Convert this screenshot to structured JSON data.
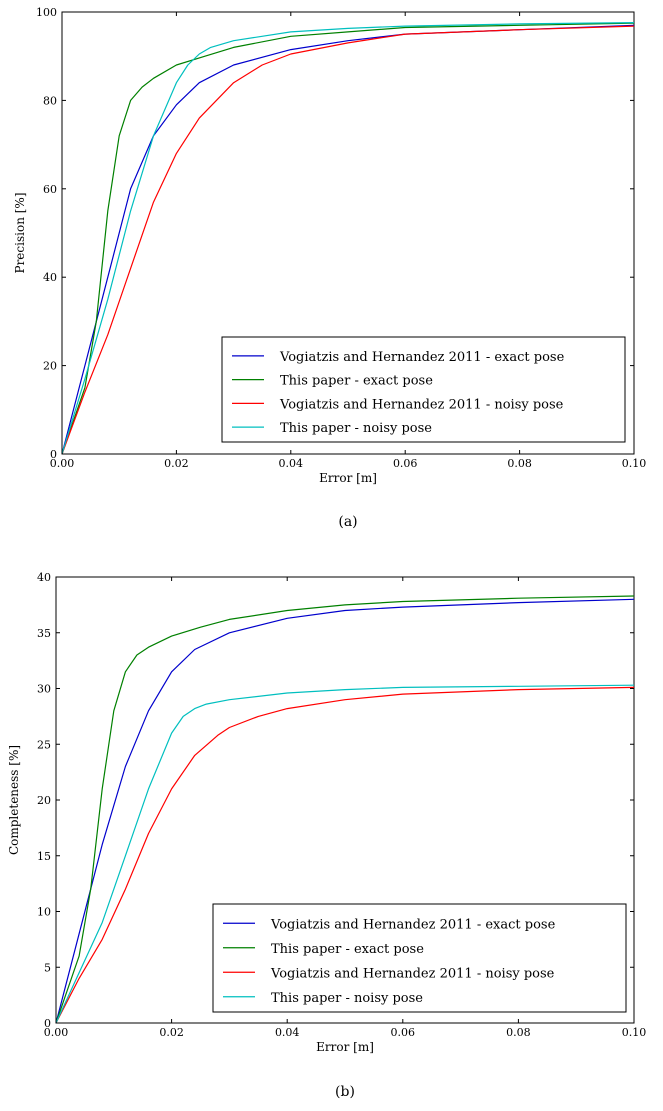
{
  "chart_data": [
    {
      "type": "line",
      "caption": "(a)",
      "xlabel": "Error [m]",
      "ylabel": "Precision [%]",
      "xlim": [
        0,
        0.1
      ],
      "ylim": [
        0,
        100
      ],
      "xticks": [
        "0.00",
        "0.02",
        "0.04",
        "0.06",
        "0.08",
        "0.10"
      ],
      "yticks": [
        "0",
        "20",
        "40",
        "60",
        "80",
        "100"
      ],
      "legend_position": "bottom-right",
      "grid": false,
      "series": [
        {
          "name": "Vogiatzis and Hernandez 2011 - exact pose",
          "color": "#0000cc",
          "x": [
            0,
            0.004,
            0.008,
            0.012,
            0.016,
            0.02,
            0.024,
            0.03,
            0.04,
            0.05,
            0.06,
            0.08,
            0.1
          ],
          "y": [
            0,
            20,
            40,
            60,
            72,
            79,
            84,
            88,
            91.5,
            93.5,
            95,
            96,
            97
          ]
        },
        {
          "name": "This paper - exact pose",
          "color": "#008000",
          "x": [
            0,
            0.004,
            0.006,
            0.008,
            0.01,
            0.012,
            0.014,
            0.016,
            0.02,
            0.025,
            0.03,
            0.04,
            0.05,
            0.06,
            0.08,
            0.1
          ],
          "y": [
            0,
            15,
            30,
            55,
            72,
            80,
            83,
            85,
            88,
            90,
            92,
            94.5,
            95.5,
            96.5,
            97,
            97.5
          ]
        },
        {
          "name": "Vogiatzis and Hernandez 2011 - noisy pose",
          "color": "#ff0000",
          "x": [
            0,
            0.004,
            0.008,
            0.012,
            0.016,
            0.02,
            0.024,
            0.03,
            0.035,
            0.04,
            0.05,
            0.06,
            0.08,
            0.1
          ],
          "y": [
            0,
            14,
            27,
            42,
            57,
            68,
            76,
            84,
            88,
            90.5,
            93,
            95,
            96,
            96.8
          ]
        },
        {
          "name": "This paper - noisy pose",
          "color": "#00bfbf",
          "x": [
            0,
            0.004,
            0.008,
            0.012,
            0.016,
            0.02,
            0.022,
            0.024,
            0.026,
            0.03,
            0.04,
            0.05,
            0.06,
            0.08,
            0.1
          ],
          "y": [
            0,
            17,
            35,
            55,
            72,
            84,
            88,
            90.5,
            92,
            93.5,
            95.5,
            96.3,
            96.8,
            97.3,
            97.6
          ]
        }
      ]
    },
    {
      "type": "line",
      "caption": "(b)",
      "xlabel": "Error [m]",
      "ylabel": "Completeness [%]",
      "xlim": [
        0,
        0.1
      ],
      "ylim": [
        0,
        40
      ],
      "xticks": [
        "0.00",
        "0.02",
        "0.04",
        "0.06",
        "0.08",
        "0.10"
      ],
      "yticks": [
        "0",
        "5",
        "10",
        "15",
        "20",
        "25",
        "30",
        "35",
        "40"
      ],
      "legend_position": "bottom-right",
      "grid": false,
      "series": [
        {
          "name": "Vogiatzis and Hernandez 2011 - exact pose",
          "color": "#0000cc",
          "x": [
            0,
            0.004,
            0.008,
            0.012,
            0.016,
            0.02,
            0.024,
            0.03,
            0.04,
            0.05,
            0.06,
            0.08,
            0.1
          ],
          "y": [
            0,
            8,
            16,
            23,
            28,
            31.5,
            33.5,
            35,
            36.3,
            37,
            37.3,
            37.7,
            38
          ]
        },
        {
          "name": "This paper - exact pose",
          "color": "#008000",
          "x": [
            0,
            0.004,
            0.006,
            0.008,
            0.01,
            0.012,
            0.014,
            0.016,
            0.02,
            0.025,
            0.03,
            0.04,
            0.05,
            0.06,
            0.08,
            0.1
          ],
          "y": [
            0,
            6,
            12,
            21,
            28,
            31.5,
            33,
            33.7,
            34.7,
            35.5,
            36.2,
            37,
            37.5,
            37.8,
            38.1,
            38.3
          ]
        },
        {
          "name": "Vogiatzis and Hernandez 2011 - noisy pose",
          "color": "#ff0000",
          "x": [
            0,
            0.004,
            0.008,
            0.012,
            0.016,
            0.02,
            0.024,
            0.028,
            0.03,
            0.035,
            0.04,
            0.05,
            0.06,
            0.08,
            0.1
          ],
          "y": [
            0,
            4,
            7.5,
            12,
            17,
            21,
            24,
            25.8,
            26.5,
            27.5,
            28.2,
            29,
            29.5,
            29.9,
            30.1
          ]
        },
        {
          "name": "This paper - noisy pose",
          "color": "#00bfbf",
          "x": [
            0,
            0.004,
            0.008,
            0.012,
            0.016,
            0.02,
            0.022,
            0.024,
            0.026,
            0.03,
            0.04,
            0.05,
            0.06,
            0.08,
            0.1
          ],
          "y": [
            0,
            4.5,
            9,
            15,
            21,
            26,
            27.5,
            28.2,
            28.6,
            29,
            29.6,
            29.9,
            30.1,
            30.2,
            30.3
          ]
        }
      ]
    }
  ]
}
